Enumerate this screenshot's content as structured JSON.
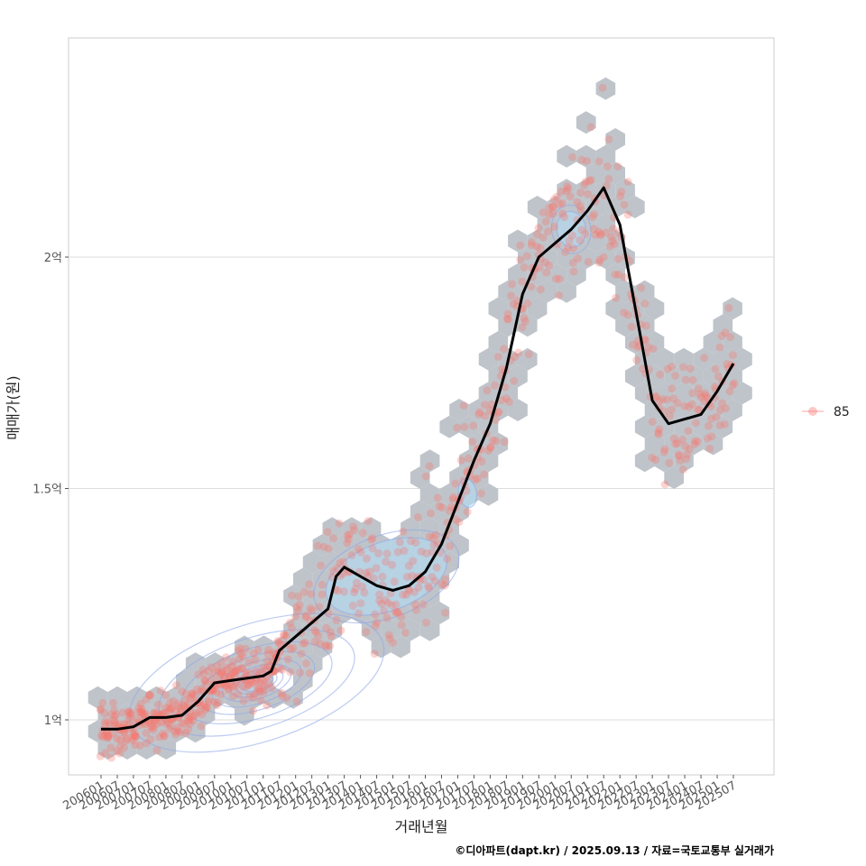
{
  "chart_data": {
    "type": "scatter",
    "xlabel": "거래년월",
    "ylabel": "매매가(원)",
    "caption": "©디아파트(dapt.kr) / 2025.09.13 / 자료=국토교통부 실거래가",
    "y_unit": "억 원",
    "ylim": [
      0.88,
      2.42
    ],
    "y_ticks": [
      {
        "value": 1.0,
        "label": "1억"
      },
      {
        "value": 1.5,
        "label": "1.5억"
      },
      {
        "value": 2.0,
        "label": "2억"
      }
    ],
    "x_range": [
      "2006-01",
      "2025-07"
    ],
    "x_tick_labels": [
      "200601",
      "200607",
      "200701",
      "200707",
      "200801",
      "200807",
      "200901",
      "200907",
      "201001",
      "201007",
      "201101",
      "201107",
      "201201",
      "201207",
      "201301",
      "201307",
      "201401",
      "201407",
      "201501",
      "201507",
      "201601",
      "201607",
      "201701",
      "201707",
      "201801",
      "201807",
      "201901",
      "201907",
      "202001",
      "202007",
      "202101",
      "202107",
      "202201",
      "202207",
      "202301",
      "202307",
      "202401",
      "202407",
      "202501",
      "202507"
    ],
    "legend": [
      {
        "label": "85",
        "color": "#F8766D"
      }
    ],
    "grid": true,
    "series": [
      {
        "name": "moving-average",
        "kind": "line",
        "color": "#000000",
        "points": [
          [
            "2006-01",
            0.98
          ],
          [
            "2006-07",
            0.98
          ],
          [
            "2007-01",
            0.985
          ],
          [
            "2007-07",
            1.005
          ],
          [
            "2008-01",
            1.005
          ],
          [
            "2008-07",
            1.01
          ],
          [
            "2009-01",
            1.04
          ],
          [
            "2009-07",
            1.08
          ],
          [
            "2010-01",
            1.085
          ],
          [
            "2010-07",
            1.09
          ],
          [
            "2011-01",
            1.095
          ],
          [
            "2011-04",
            1.105
          ],
          [
            "2011-07",
            1.15
          ],
          [
            "2012-01",
            1.18
          ],
          [
            "2012-07",
            1.21
          ],
          [
            "2013-01",
            1.24
          ],
          [
            "2013-04",
            1.31
          ],
          [
            "2013-07",
            1.33
          ],
          [
            "2014-01",
            1.31
          ],
          [
            "2014-07",
            1.29
          ],
          [
            "2015-01",
            1.28
          ],
          [
            "2015-07",
            1.29
          ],
          [
            "2016-01",
            1.32
          ],
          [
            "2016-07",
            1.38
          ],
          [
            "2017-01",
            1.47
          ],
          [
            "2017-07",
            1.56
          ],
          [
            "2018-01",
            1.64
          ],
          [
            "2018-07",
            1.76
          ],
          [
            "2019-01",
            1.92
          ],
          [
            "2019-07",
            2.0
          ],
          [
            "2020-01",
            2.03
          ],
          [
            "2020-07",
            2.06
          ],
          [
            "2021-01",
            2.1
          ],
          [
            "2021-07",
            2.15
          ],
          [
            "2022-01",
            2.07
          ],
          [
            "2022-07",
            1.88
          ],
          [
            "2023-01",
            1.69
          ],
          [
            "2023-07",
            1.64
          ],
          [
            "2024-01",
            1.65
          ],
          [
            "2024-07",
            1.66
          ],
          [
            "2025-01",
            1.71
          ],
          [
            "2025-04",
            1.74
          ],
          [
            "2025-07",
            1.77
          ]
        ]
      },
      {
        "name": "trade-density",
        "kind": "hexbin",
        "color": "#bcc1c7",
        "description": "hexagonal bins along the price trend, 2006-2025"
      },
      {
        "name": "trade-points",
        "kind": "scatter",
        "color": "#F8766D",
        "size_label": "85",
        "description": "individual trades clustered around the moving average"
      }
    ]
  }
}
